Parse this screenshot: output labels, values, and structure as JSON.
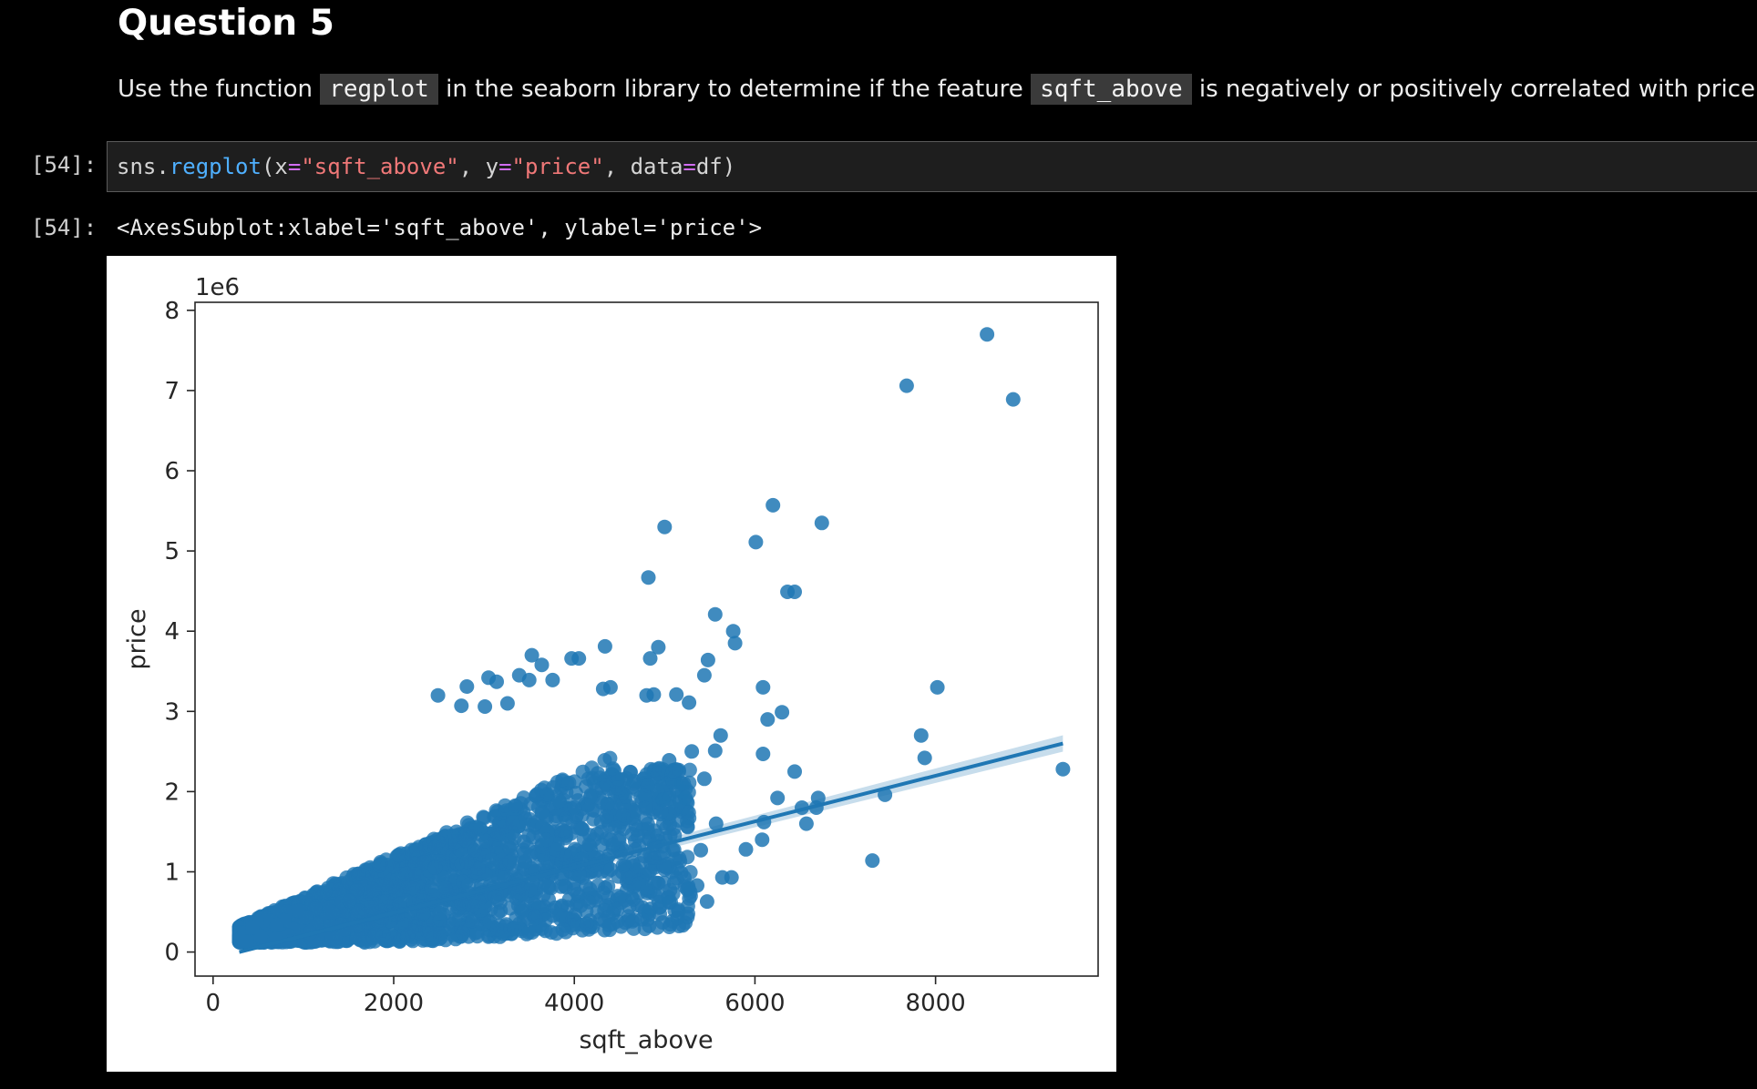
{
  "heading": "Question 5",
  "instruction": {
    "part1": "Use the function",
    "code1": "regplot",
    "part2": "in the seaborn library to determine if the feature",
    "code2": "sqft_above",
    "part3": "is negatively or positively correlated with price."
  },
  "input_cell": {
    "prompt": "[54]:",
    "code": {
      "obj": "sns",
      "dot": ".",
      "fn": "regplot",
      "open": "(",
      "arg1_name": "x",
      "eq": "=",
      "arg1_val": "\"sqft_above\"",
      "sep1": ", ",
      "arg2_name": "y",
      "arg2_val": "\"price\"",
      "sep2": ", ",
      "arg3_name": "data",
      "arg3_val": "df",
      "close": ")"
    }
  },
  "output_cell": {
    "prompt": "[54]:",
    "text": "<AxesSubplot:xlabel='sqft_above', ylabel='price'>"
  },
  "chart_data": {
    "type": "scatter",
    "xlabel": "sqft_above",
    "ylabel": "price",
    "y_offset_label": "1e6",
    "xlim": [
      -200,
      9800
    ],
    "ylim": [
      -0.3,
      8.1
    ],
    "y_unit_multiplier": 1000000,
    "xticks": [
      0,
      2000,
      4000,
      6000,
      8000
    ],
    "xtick_labels": [
      "0",
      "2000",
      "4000",
      "6000",
      "8000"
    ],
    "yticks": [
      0,
      1,
      2,
      3,
      4,
      5,
      6,
      7,
      8
    ],
    "ytick_labels": [
      "0",
      "1",
      "2",
      "3",
      "4",
      "5",
      "6",
      "7",
      "8"
    ],
    "grid": false,
    "point_color": "#1f77b4",
    "regression_line": {
      "x": [
        290,
        9410
      ],
      "y": [
        0.0,
        2.6
      ]
    },
    "outlier_points": [
      [
        8570,
        7.7
      ],
      [
        7680,
        7.06
      ],
      [
        8860,
        6.89
      ],
      [
        6200,
        5.57
      ],
      [
        6740,
        5.35
      ],
      [
        5000,
        5.3
      ],
      [
        6010,
        5.11
      ],
      [
        4820,
        4.67
      ],
      [
        6360,
        4.49
      ],
      [
        6440,
        4.49
      ],
      [
        5560,
        4.21
      ],
      [
        5760,
        4.0
      ],
      [
        5780,
        3.85
      ],
      [
        4340,
        3.81
      ],
      [
        4930,
        3.8
      ],
      [
        4840,
        3.66
      ],
      [
        5480,
        3.64
      ],
      [
        3530,
        3.7
      ],
      [
        3640,
        3.58
      ],
      [
        3970,
        3.66
      ],
      [
        4050,
        3.66
      ],
      [
        5440,
        3.45
      ],
      [
        3390,
        3.45
      ],
      [
        3500,
        3.39
      ],
      [
        3760,
        3.39
      ],
      [
        3050,
        3.42
      ],
      [
        3140,
        3.37
      ],
      [
        2490,
        3.2
      ],
      [
        2750,
        3.07
      ],
      [
        2810,
        3.31
      ],
      [
        3010,
        3.06
      ],
      [
        3260,
        3.1
      ],
      [
        4320,
        3.28
      ],
      [
        4400,
        3.3
      ],
      [
        4800,
        3.2
      ],
      [
        4880,
        3.21
      ],
      [
        5130,
        3.21
      ],
      [
        5270,
        3.11
      ],
      [
        6090,
        3.3
      ],
      [
        8020,
        3.3
      ],
      [
        6140,
        2.9
      ],
      [
        6300,
        2.99
      ],
      [
        5620,
        2.7
      ],
      [
        6090,
        2.47
      ],
      [
        7840,
        2.7
      ],
      [
        7880,
        2.42
      ],
      [
        9410,
        2.28
      ],
      [
        6440,
        2.25
      ],
      [
        7440,
        1.96
      ],
      [
        6250,
        1.92
      ],
      [
        6520,
        1.8
      ],
      [
        6680,
        1.8
      ],
      [
        6700,
        1.92
      ],
      [
        6570,
        1.6
      ],
      [
        6080,
        1.4
      ],
      [
        6100,
        1.62
      ],
      [
        5900,
        1.28
      ],
      [
        7300,
        1.14
      ],
      [
        5740,
        0.93
      ],
      [
        5640,
        0.93
      ],
      [
        5470,
        0.63
      ],
      [
        5360,
        0.83
      ],
      [
        4820,
        0.5
      ],
      [
        5050,
        0.62
      ],
      [
        5250,
        0.78
      ],
      [
        5560,
        2.51
      ],
      [
        5300,
        2.5
      ],
      [
        5440,
        2.16
      ],
      [
        5230,
        1.92
      ],
      [
        5190,
        2.1
      ],
      [
        4980,
        1.9
      ],
      [
        5050,
        2.39
      ],
      [
        5570,
        1.6
      ],
      [
        5400,
        1.27
      ]
    ],
    "dense_cluster": {
      "description_free": true,
      "x_range": [
        290,
        5400
      ],
      "y_range": [
        0.1,
        2.6
      ]
    }
  }
}
